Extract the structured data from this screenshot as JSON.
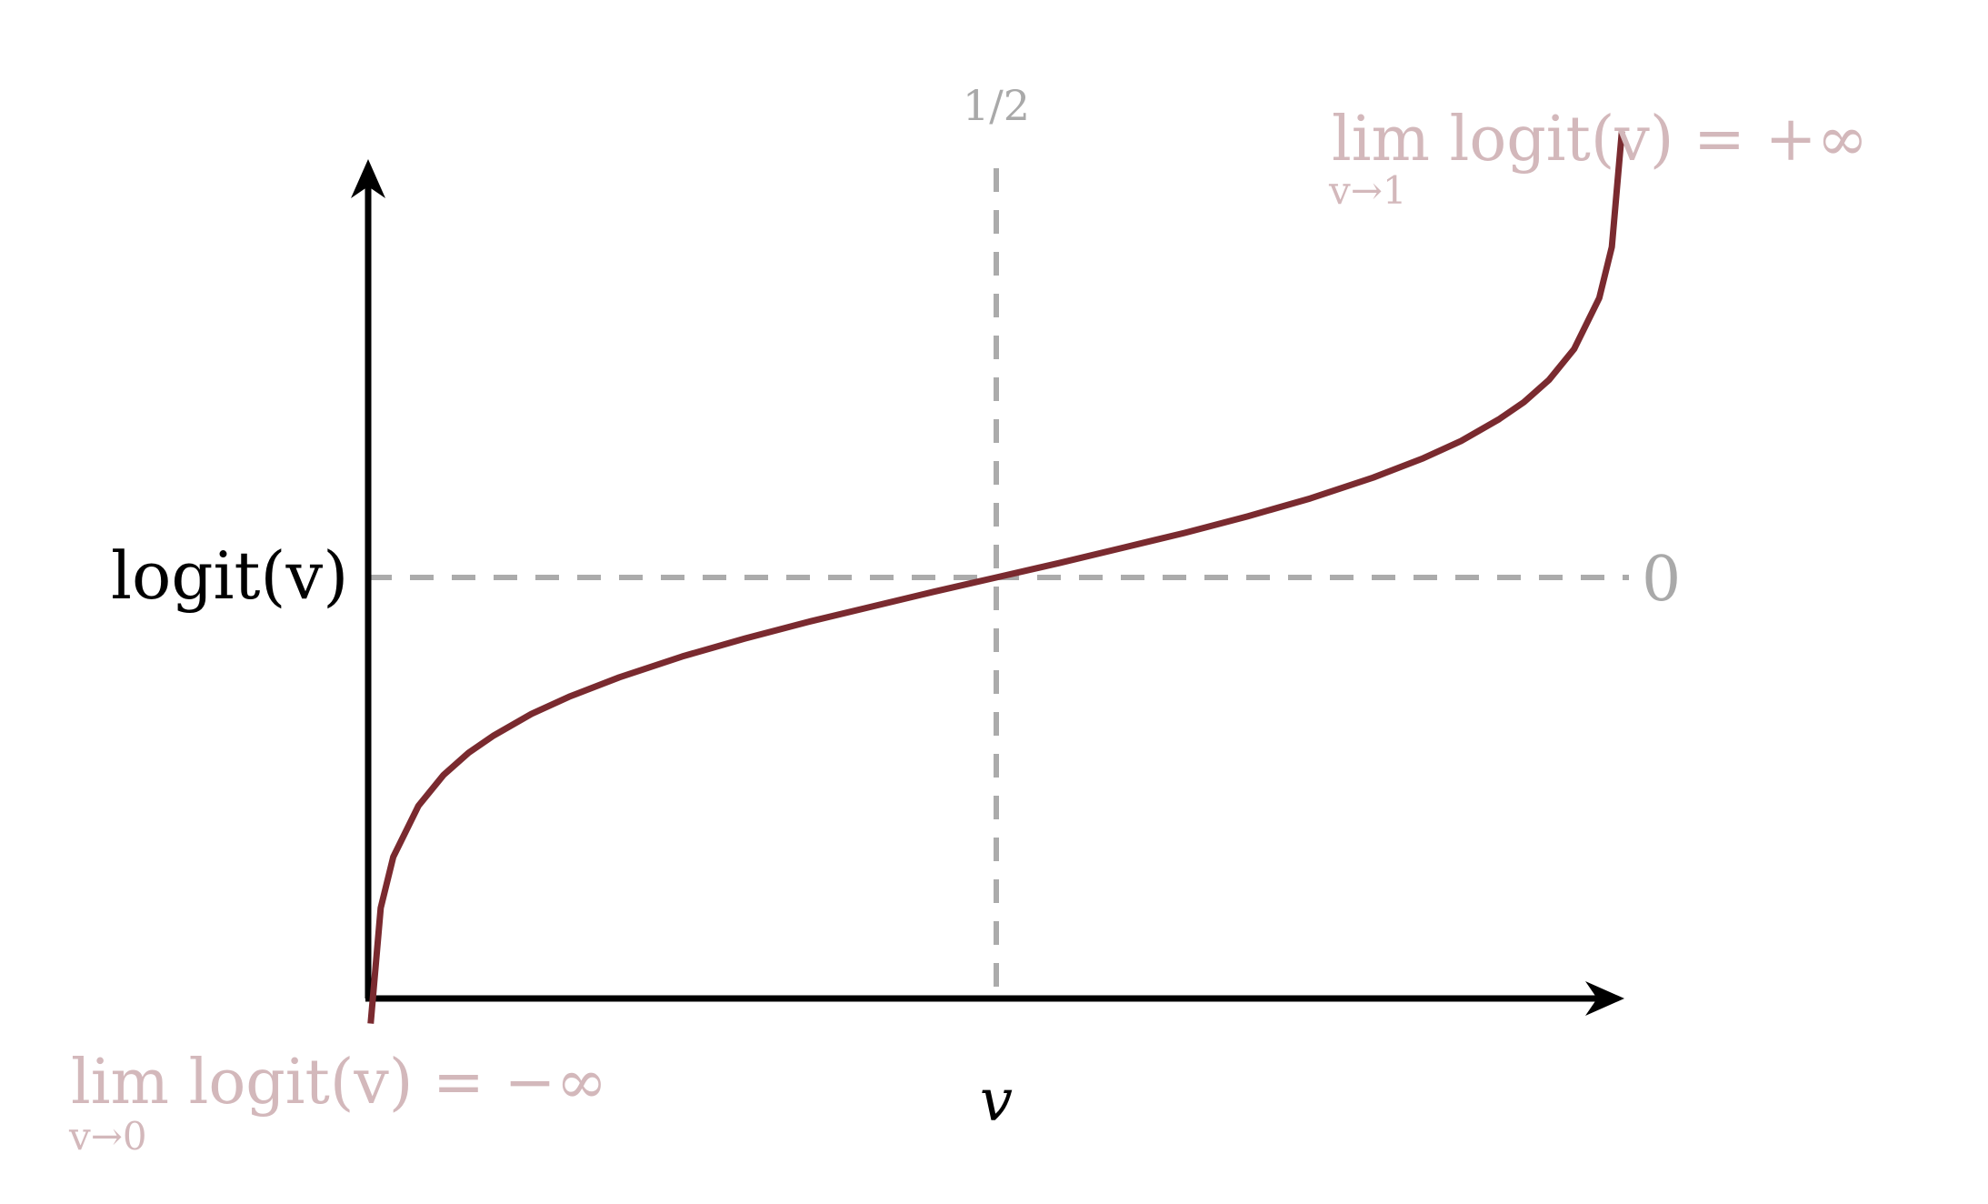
{
  "chart_data": {
    "type": "line",
    "xlabel": "v",
    "ylabel": "logit(v)",
    "xlim": [
      0,
      1
    ],
    "series": [
      {
        "x": [
          0.002,
          0.01,
          0.02,
          0.04,
          0.06,
          0.08,
          0.1,
          0.13,
          0.16,
          0.2,
          0.25,
          0.3,
          0.35,
          0.4,
          0.45,
          0.5,
          0.55,
          0.6,
          0.65,
          0.7,
          0.75,
          0.8,
          0.84,
          0.87,
          0.9,
          0.92,
          0.94,
          0.96,
          0.98,
          0.99,
          0.998
        ],
        "y": [
          -6.21,
          -4.6,
          -3.89,
          -3.18,
          -2.75,
          -2.44,
          -2.2,
          -1.9,
          -1.66,
          -1.39,
          -1.1,
          -0.85,
          -0.62,
          -0.41,
          -0.2,
          0.0,
          0.2,
          0.41,
          0.62,
          0.85,
          1.1,
          1.39,
          1.66,
          1.9,
          2.2,
          2.44,
          2.75,
          3.18,
          3.89,
          4.6,
          6.21
        ]
      }
    ],
    "reference_lines": {
      "vertical": {
        "x": 0.5,
        "label": "1/2"
      },
      "horizontal": {
        "y": 0,
        "label": "0"
      }
    },
    "annotations": {
      "upper_limit": {
        "text": "lim logit(v) = +∞",
        "subscript": "v→1"
      },
      "lower_limit": {
        "text": "lim logit(v) = −∞",
        "subscript": "v→0"
      }
    },
    "colors": {
      "curve": "#7a2a2f",
      "axes": "#000000",
      "reference": "#ababab",
      "annotation": "#d3b8bb"
    },
    "grid": false
  }
}
